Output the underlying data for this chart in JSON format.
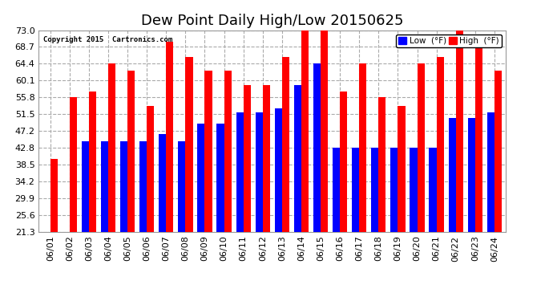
{
  "title": "Dew Point Daily High/Low 20150625",
  "copyright": "Copyright 2015  Cartronics.com",
  "dates": [
    "06/01",
    "06/02",
    "06/03",
    "06/04",
    "06/05",
    "06/06",
    "06/07",
    "06/08",
    "06/09",
    "06/10",
    "06/11",
    "06/12",
    "06/13",
    "06/14",
    "06/15",
    "06/16",
    "06/17",
    "06/18",
    "06/19",
    "06/20",
    "06/21",
    "06/22",
    "06/23",
    "06/24"
  ],
  "low_values": [
    21.3,
    21.3,
    44.6,
    44.6,
    44.6,
    44.6,
    46.4,
    44.6,
    49.0,
    49.0,
    52.0,
    52.0,
    53.0,
    59.0,
    64.4,
    42.8,
    42.8,
    42.8,
    42.8,
    42.8,
    42.8,
    50.5,
    50.5,
    52.0
  ],
  "high_values": [
    40.0,
    55.8,
    57.2,
    64.4,
    62.6,
    53.6,
    70.0,
    66.2,
    62.6,
    62.6,
    59.0,
    59.0,
    66.2,
    73.0,
    73.0,
    57.2,
    64.4,
    55.8,
    53.6,
    64.4,
    66.2,
    73.0,
    68.7,
    62.6
  ],
  "low_color": "#0000ff",
  "high_color": "#ff0000",
  "bg_color": "#ffffff",
  "grid_color": "#aaaaaa",
  "yticks": [
    21.3,
    25.6,
    29.9,
    34.2,
    38.5,
    42.8,
    47.2,
    51.5,
    55.8,
    60.1,
    64.4,
    68.7,
    73.0
  ],
  "ymin": 21.3,
  "ymax": 73.0,
  "title_fontsize": 13,
  "tick_fontsize": 8,
  "legend_low_label": "Low  (°F)",
  "legend_high_label": "High  (°F)"
}
